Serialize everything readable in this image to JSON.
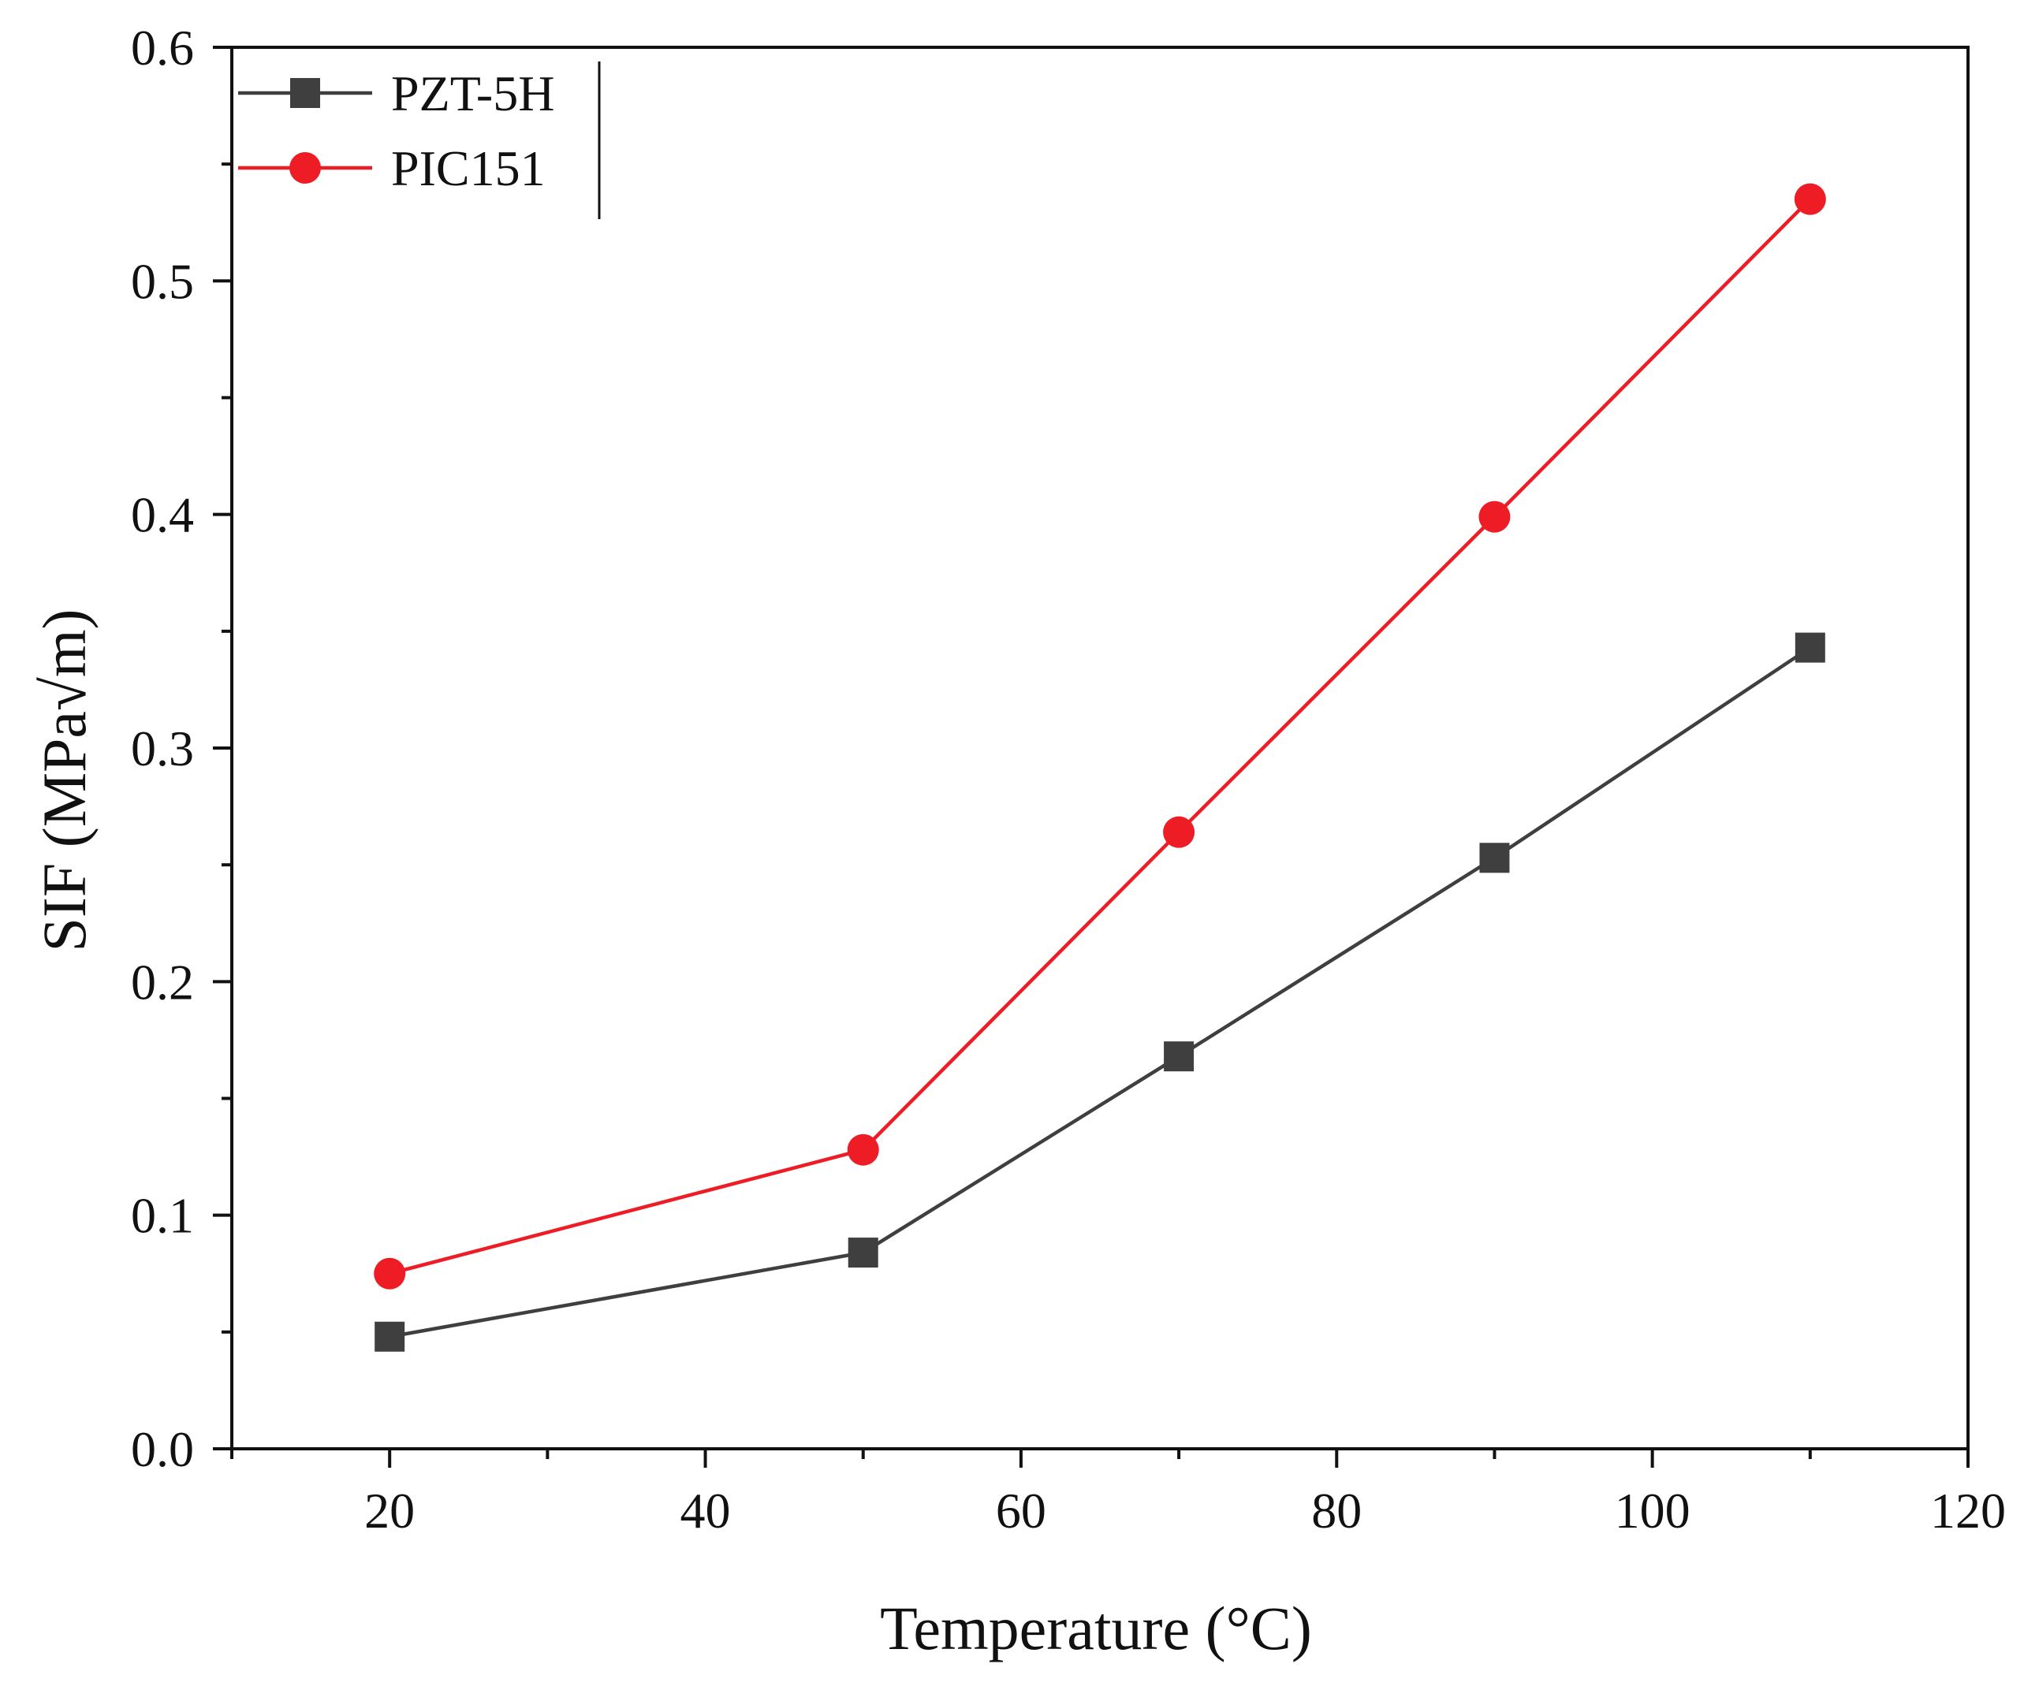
{
  "chart_data": {
    "type": "line",
    "title": "",
    "xlabel": "Temperature (°C)",
    "ylabel": "SIF (MPa√m)",
    "xlim": [
      10,
      120
    ],
    "ylim": [
      0.0,
      0.6
    ],
    "xticks": [
      20,
      40,
      60,
      80,
      100,
      120
    ],
    "xtick_labels": [
      "20",
      "40",
      "60",
      "80",
      "100",
      "120"
    ],
    "yticks": [
      0.0,
      0.1,
      0.2,
      0.3,
      0.4,
      0.5,
      0.6
    ],
    "ytick_labels": [
      "0.0",
      "0.1",
      "0.2",
      "0.3",
      "0.4",
      "0.5",
      "0.6"
    ],
    "grid": false,
    "legend_position": "top-left",
    "x": [
      20,
      50,
      70,
      90,
      110
    ],
    "series": [
      {
        "name": "PZT-5H",
        "marker": "square",
        "color": "#3f3f3f",
        "values": [
          0.048,
          0.084,
          0.168,
          0.253,
          0.343
        ]
      },
      {
        "name": "PIC151",
        "marker": "circle",
        "color": "#ee1c24",
        "values": [
          0.075,
          0.128,
          0.264,
          0.399,
          0.535
        ]
      }
    ]
  }
}
